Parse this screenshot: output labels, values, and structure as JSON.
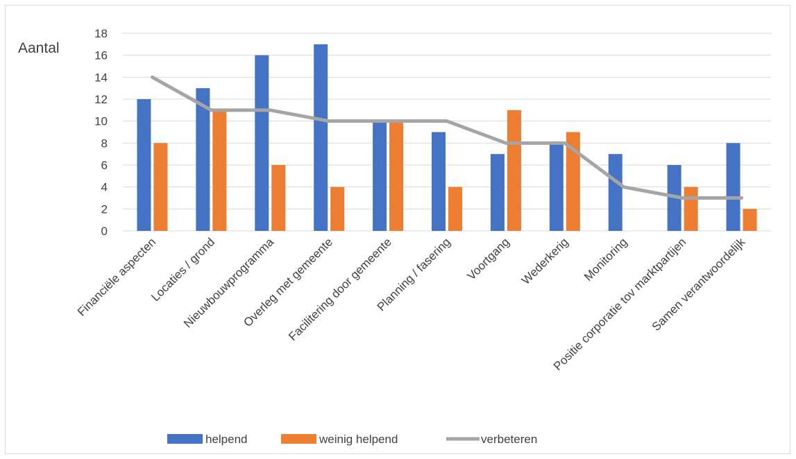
{
  "chart_data": {
    "type": "bar",
    "ylabel": "Aantal",
    "ylim": [
      0,
      18
    ],
    "yticks": [
      "0",
      "2",
      "4",
      "6",
      "8",
      "10",
      "12",
      "14",
      "16",
      "18"
    ],
    "grid": true,
    "legend_position": "bottom",
    "categories": [
      "Financiële aspecten",
      "Locaties / grond",
      "Nieuwbouwprogramma",
      "Overleg met gemeente",
      "Facilitering door gemeente",
      "Planning / fasering",
      "Voortgang",
      "Wederkerig",
      "Monitoring",
      "Positie corporatie tov marktpartijen",
      "Samen verantwoordelijk"
    ],
    "series": [
      {
        "name": "helpend",
        "type": "bar",
        "color": "#4472c4",
        "values": [
          12,
          13,
          16,
          17,
          10,
          9,
          7,
          8,
          7,
          6,
          8
        ]
      },
      {
        "name": "weinig helpend",
        "type": "bar",
        "color": "#ed7d31",
        "values": [
          8,
          11,
          6,
          4,
          10,
          4,
          11,
          9,
          0,
          4,
          2
        ]
      },
      {
        "name": "verbeteren",
        "type": "line",
        "color": "#a5a5a5",
        "values": [
          14,
          11,
          11,
          10,
          10,
          10,
          8,
          8,
          4,
          3,
          3
        ]
      }
    ]
  }
}
